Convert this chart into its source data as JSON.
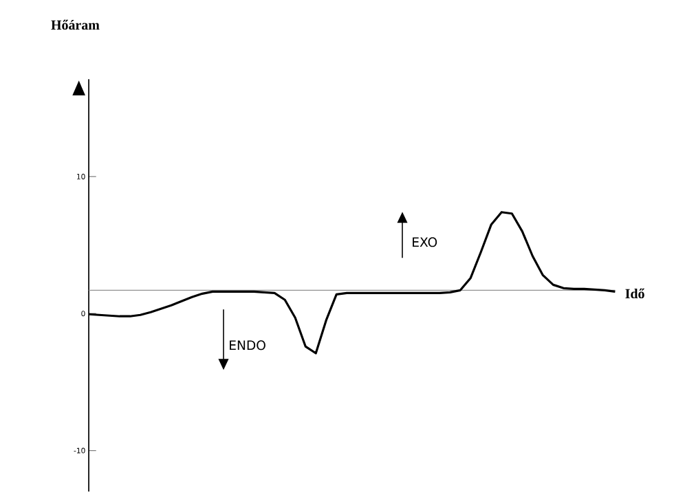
{
  "chart_data": {
    "type": "line",
    "ylabel": "Hőáram",
    "xlabel": "Idő",
    "categories": [
      null,
      null,
      null,
      null,
      null,
      null,
      null,
      null,
      null,
      null,
      null,
      null,
      null,
      null,
      null,
      null,
      null,
      null,
      null,
      null,
      null,
      null,
      null,
      null,
      null,
      null,
      null,
      null,
      null,
      null,
      null,
      null,
      null,
      null,
      null,
      null,
      null,
      null,
      null,
      null,
      null,
      null,
      null,
      null,
      null,
      null,
      null,
      null,
      null,
      null,
      null,
      null
    ],
    "values": [
      -0.05,
      -0.1,
      -0.15,
      -0.2,
      -0.2,
      -0.1,
      0.1,
      0.35,
      0.6,
      0.9,
      1.2,
      1.45,
      1.6,
      1.6,
      1.6,
      1.6,
      1.6,
      1.55,
      1.5,
      1.0,
      -0.3,
      -2.4,
      -2.9,
      -0.5,
      1.4,
      1.5,
      1.5,
      1.5,
      1.5,
      1.5,
      1.5,
      1.5,
      1.5,
      1.5,
      1.5,
      1.55,
      1.7,
      2.6,
      4.5,
      6.5,
      7.4,
      7.3,
      6.0,
      4.2,
      2.8,
      2.1,
      1.85,
      1.8,
      1.8,
      1.75,
      1.7,
      1.6
    ],
    "color": "#000000",
    "ylim": [
      -13,
      17.1
    ],
    "yticks": [
      -10,
      0,
      10
    ],
    "marker": "none",
    "line_style": "solid",
    "grid": false,
    "ref_lines": [
      {
        "axis": "y",
        "value": 1.7,
        "color": "#909090"
      }
    ],
    "annotations": [
      "EXO",
      "ENDO"
    ]
  }
}
